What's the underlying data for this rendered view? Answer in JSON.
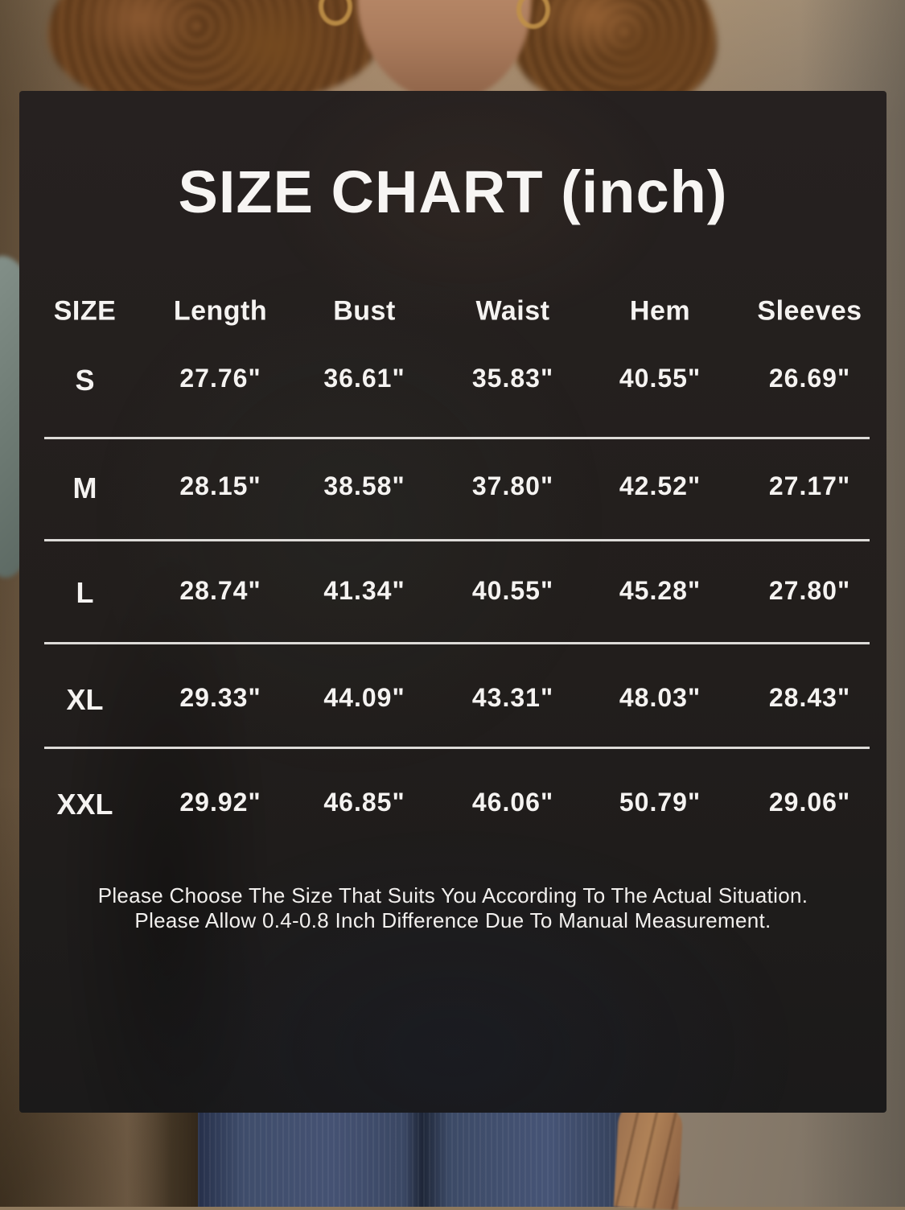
{
  "chart_data": {
    "type": "table",
    "title": "SIZE CHART (inch)",
    "unit": "inch",
    "columns": [
      "SIZE",
      "Length",
      "Bust",
      "Waist",
      "Hem",
      "Sleeves"
    ],
    "rows": [
      [
        "S",
        "27.76\"",
        "36.61\"",
        "35.83\"",
        "40.55\"",
        "26.69\""
      ],
      [
        "M",
        "28.15\"",
        "38.58\"",
        "37.80\"",
        "42.52\"",
        "27.17\""
      ],
      [
        "L",
        "28.74\"",
        "41.34\"",
        "40.55\"",
        "45.28\"",
        "27.80\""
      ],
      [
        "XL",
        "29.33\"",
        "44.09\"",
        "43.31\"",
        "48.03\"",
        "28.43\""
      ],
      [
        "XXL",
        "29.92\"",
        "46.85\"",
        "46.06\"",
        "50.79\"",
        "29.06\""
      ]
    ],
    "notes": [
      "Please Choose The Size That Suits You According To The Actual Situation.",
      "Please Allow 0.4-0.8 Inch Difference Due To Manual Measurement."
    ],
    "layout_hints": {
      "legend": "none",
      "grid": "horizontal separators between size rows",
      "overlay": "dark panel over product photo"
    }
  },
  "colors": {
    "panel_bg": "#221e1c",
    "text": "#f5f3f1",
    "separator": "#e8e6e3",
    "wall": "#9c8468",
    "denim": "#3f4d6b",
    "hair": "#74491f"
  }
}
